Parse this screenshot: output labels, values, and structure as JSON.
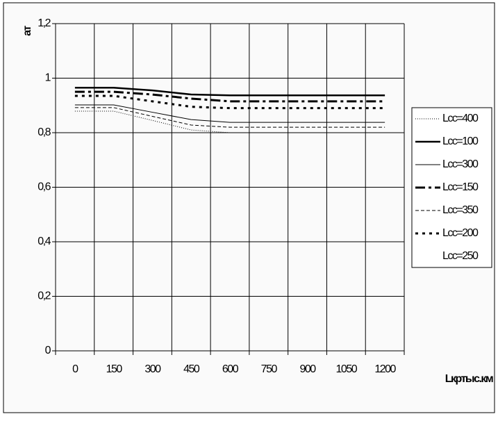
{
  "chart_data": {
    "type": "line",
    "ylabel": "ат",
    "xlabel": "Lкртыс.км",
    "categories": [
      "0",
      "150",
      "300",
      "450",
      "600",
      "750",
      "900",
      "1050",
      "1200"
    ],
    "ylim": [
      0,
      1.2
    ],
    "yticks": [
      0,
      {
        "value": 0.2,
        "label": "0,2"
      },
      {
        "value": 0.4,
        "label": "0,4"
      },
      {
        "value": 0.6,
        "label": "0,6"
      },
      {
        "value": 0.8,
        "label": "0,8"
      },
      1,
      {
        "value": 1.2,
        "label": "1,2"
      }
    ],
    "grid": true,
    "legend": "right",
    "series": [
      {
        "name": "Lсс=400",
        "color": "#000000",
        "width": 1,
        "dash": "1,2",
        "values": [
          0.879,
          0.879,
          0.845,
          0.81,
          0.8,
          0.8,
          0.8,
          0.8,
          0.8
        ]
      },
      {
        "name": "Lсс=100",
        "color": "#000000",
        "width": 2.5,
        "dash": "none",
        "values": [
          0.965,
          0.965,
          0.955,
          0.94,
          0.937,
          0.937,
          0.937,
          0.937,
          0.937
        ]
      },
      {
        "name": "Lсс=300",
        "color": "#000000",
        "width": 1,
        "dash": "none",
        "values": [
          0.902,
          0.902,
          0.875,
          0.848,
          0.838,
          0.838,
          0.838,
          0.838,
          0.838
        ]
      },
      {
        "name": "Lсс=150",
        "color": "#000000",
        "width": 3,
        "dash": "14,5,4,5",
        "values": [
          0.95,
          0.95,
          0.94,
          0.925,
          0.915,
          0.915,
          0.915,
          0.915,
          0.915
        ]
      },
      {
        "name": "Lсс=350",
        "color": "#000000",
        "width": 1,
        "dash": "5,3",
        "values": [
          0.892,
          0.892,
          0.86,
          0.828,
          0.82,
          0.82,
          0.82,
          0.82,
          0.82
        ]
      },
      {
        "name": "Lсс=200",
        "color": "#000000",
        "width": 3,
        "dash": "4,6",
        "values": [
          0.935,
          0.935,
          0.915,
          0.895,
          0.89,
          0.89,
          0.89,
          0.89,
          0.89
        ]
      },
      {
        "name": "Lсс=250",
        "color": "none",
        "width": 1,
        "dash": "none",
        "values": [
          null,
          null,
          null,
          null,
          null,
          null,
          null,
          null,
          null
        ]
      }
    ]
  }
}
